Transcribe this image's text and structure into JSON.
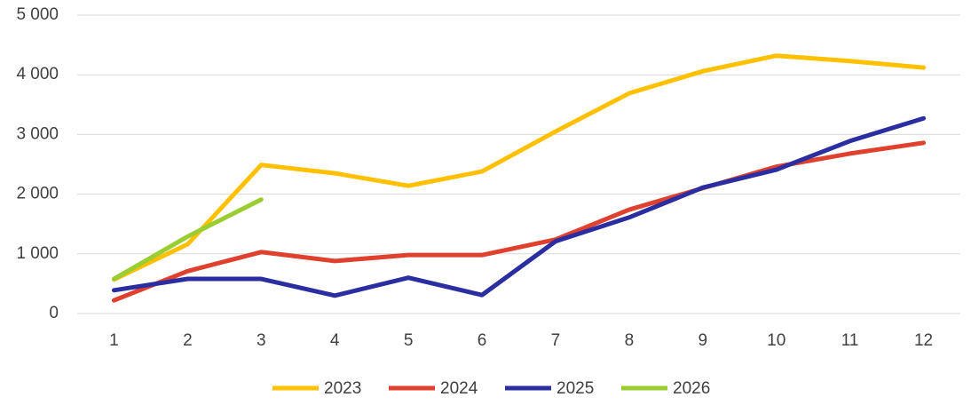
{
  "chart_data": {
    "type": "line",
    "categories": [
      "1",
      "2",
      "3",
      "4",
      "5",
      "6",
      "7",
      "8",
      "9",
      "10",
      "11",
      "12"
    ],
    "series": [
      {
        "name": "2023",
        "color": "#ffc000",
        "values": [
          570,
          1160,
          2490,
          2350,
          2140,
          2380,
          3050,
          3690,
          4060,
          4320,
          4230,
          4120
        ]
      },
      {
        "name": "2024",
        "color": "#e0412f",
        "values": [
          220,
          710,
          1030,
          880,
          980,
          980,
          1240,
          1740,
          2100,
          2460,
          2680,
          2860
        ]
      },
      {
        "name": "2025",
        "color": "#2b2ea0",
        "values": [
          390,
          580,
          580,
          300,
          600,
          310,
          1210,
          1610,
          2110,
          2410,
          2890,
          3270
        ]
      },
      {
        "name": "2026",
        "color": "#9acd32",
        "values": [
          580,
          1290,
          1910,
          null,
          null,
          null,
          null,
          null,
          null,
          null,
          null,
          null
        ]
      }
    ],
    "ylim": [
      0,
      5000
    ],
    "yticks": [
      0,
      {
        "value": 1000,
        "label": "1 000"
      },
      {
        "value": 2000,
        "label": "2 000"
      },
      {
        "value": 3000,
        "label": "3 000"
      },
      {
        "value": 4000,
        "label": "4 000"
      },
      {
        "value": 5000,
        "label": "5 000"
      }
    ],
    "grid": true,
    "legend": "bottom"
  }
}
